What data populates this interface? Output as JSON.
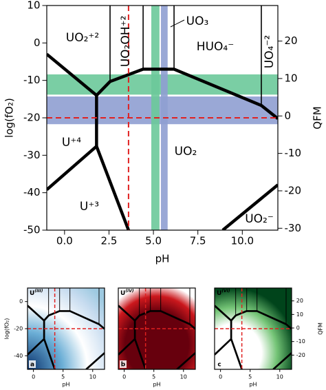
{
  "chart_data": [
    {
      "type": "phase",
      "xlabel": "pH",
      "ylabel": "log(fO₂)",
      "y2label": "QFM",
      "xlim": [
        -1,
        12
      ],
      "ylim": [
        -50,
        10
      ],
      "y2lim": [
        -30.5,
        29.5
      ],
      "xticks": [
        {
          "value": 0,
          "label": "0.0"
        },
        2.5,
        {
          "value": 5,
          "label": "5.0"
        },
        7.5,
        {
          "value": 10,
          "label": "10.0"
        }
      ],
      "yticks": [
        10,
        0,
        -10,
        -20,
        -30,
        -40,
        -50
      ],
      "y2ticks": [
        20,
        10,
        0,
        -10,
        -20,
        -30
      ],
      "bands": [
        {
          "axis": "y",
          "range": [
            -13.8,
            -8.4
          ],
          "color": "#6cc99a"
        },
        {
          "axis": "y",
          "range": [
            -21.7,
            -14.3
          ],
          "color": "#8f9fd2"
        },
        {
          "axis": "x",
          "range": [
            4.88,
            5.34
          ],
          "color": "#6cc99a"
        },
        {
          "axis": "x",
          "range": [
            5.42,
            5.8
          ],
          "color": "#8f9fd2"
        }
      ],
      "reference_lines": [
        {
          "axis": "x",
          "value": 3.6,
          "color": "#e02020"
        },
        {
          "axis": "y",
          "value": -20,
          "color": "#e02020"
        }
      ],
      "boundaries": [
        {
          "style": "thick",
          "x": [
            -1,
            1.8
          ],
          "values": [
            -3,
            -14
          ]
        },
        {
          "style": "thick",
          "x": [
            1.8,
            2.56,
            4.42,
            6.16,
            11.07,
            12
          ],
          "values": [
            -14,
            -10.3,
            -7,
            -7,
            -16.7,
            -20.2
          ]
        },
        {
          "style": "thick",
          "x": [
            1.8,
            1.8
          ],
          "values": [
            -14,
            -27.6
          ]
        },
        {
          "style": "thick",
          "x": [
            1.8,
            -1
          ],
          "values": [
            -27.6,
            -39.2
          ]
        },
        {
          "style": "thick",
          "x": [
            1.8,
            3.6
          ],
          "values": [
            -27.6,
            -50
          ]
        },
        {
          "style": "thick",
          "x": [
            8.9,
            12
          ],
          "values": [
            -50,
            -37.9
          ]
        },
        {
          "style": "thin",
          "x": [
            2.56,
            2.56
          ],
          "values": [
            10,
            -10.3
          ]
        },
        {
          "style": "thin",
          "x": [
            4.42,
            4.42
          ],
          "values": [
            10,
            -7
          ]
        },
        {
          "style": "thin",
          "x": [
            6.16,
            6.16
          ],
          "values": [
            10,
            -7
          ]
        },
        {
          "style": "thin",
          "x": [
            11.07,
            11.07
          ],
          "values": [
            10,
            -16.7
          ]
        }
      ],
      "annotations": [
        "UO₂⁺²",
        "UO₂OH⁺²",
        "UO₃",
        "HUO₄⁻",
        "UO₄⁻²",
        "U⁺⁴",
        "UO₂",
        "U⁺³",
        "UO₂⁻"
      ]
    },
    {
      "type": "phase",
      "panel": "a",
      "species": {
        "base": "U",
        "state": "(III)"
      },
      "cmap_color": "#08306b",
      "xlabel": "pH",
      "ylabel": "log(fO₂)",
      "xlim": [
        -1,
        12
      ],
      "ylim": [
        -50,
        10
      ],
      "xticks": [
        0,
        5,
        10
      ],
      "yticks": [
        0,
        -20,
        -40
      ]
    },
    {
      "type": "phase",
      "panel": "b",
      "species": {
        "base": "U",
        "state": "(IV)"
      },
      "cmap_color": "#67000d",
      "xlabel": "pH",
      "xlim": [
        -1,
        12
      ],
      "ylim": [
        -50,
        10
      ],
      "xticks": [
        0,
        5,
        10
      ]
    },
    {
      "type": "phase",
      "panel": "c",
      "species": {
        "base": "U",
        "state": "(VI)"
      },
      "cmap_color": "#00441b",
      "xlabel": "pH",
      "y2label": "QFM",
      "xlim": [
        -1,
        12
      ],
      "ylim": [
        -50,
        10
      ],
      "y2lim": [
        -30.5,
        29.5
      ],
      "xticks": [
        0,
        5,
        10
      ],
      "y2ticks": [
        20,
        10,
        0,
        -10,
        -20
      ]
    }
  ]
}
